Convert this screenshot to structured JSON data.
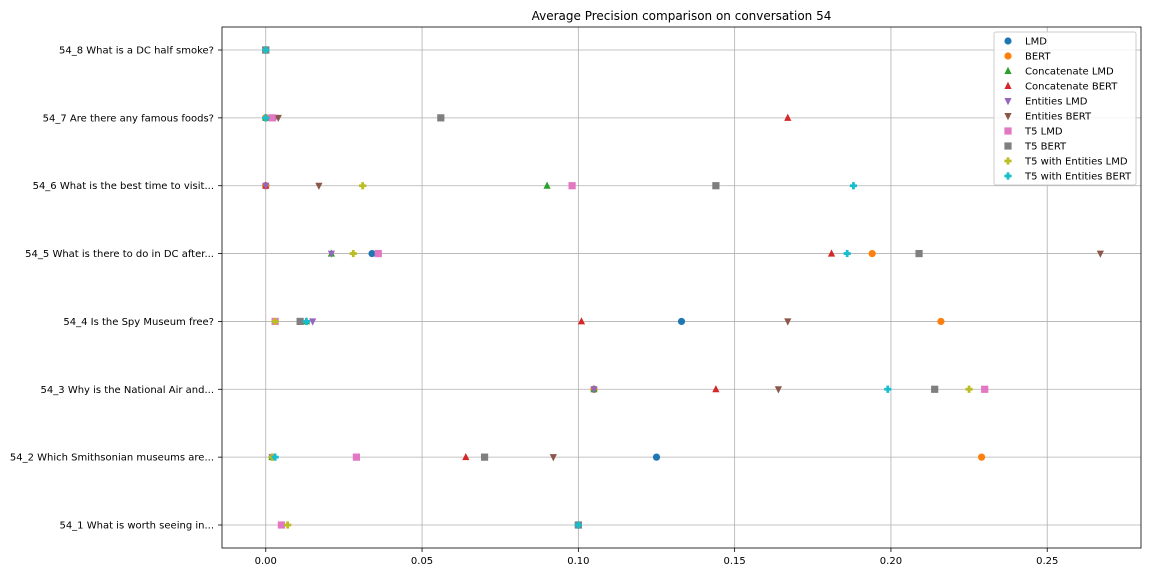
{
  "chart_data": {
    "type": "scatter",
    "title": "Average Precision comparison on conversation 54",
    "xlabel": "",
    "ylabel": "",
    "xlim": [
      -0.014,
      0.28
    ],
    "xticks": [
      0.0,
      0.05,
      0.1,
      0.15,
      0.2,
      0.25
    ],
    "xtick_labels": [
      "0.00",
      "0.05",
      "0.10",
      "0.15",
      "0.20",
      "0.25"
    ],
    "categories": [
      "54_8 What is a DC half smoke?",
      "54_7 Are there any famous foods?",
      "54_6 What is the best time to visit...",
      "54_5 What is there to do in DC after...",
      "54_4 Is the Spy Museum free?",
      "54_3 Why is the National Air and...",
      "54_2 Which Smithsonian museums are...",
      "54_1 What is worth seeing in..."
    ],
    "grid": true,
    "legend_position": "top-right",
    "series": [
      {
        "name": "LMD",
        "color": "#1f77b4",
        "marker": "circle",
        "values": [
          0.0,
          0.0,
          0.0,
          0.034,
          0.133,
          0.105,
          0.125,
          0.1
        ]
      },
      {
        "name": "BERT",
        "color": "#ff7f0e",
        "marker": "circle",
        "values": [
          0.0,
          0.0,
          0.0,
          0.194,
          0.216,
          0.105,
          0.229,
          0.1
        ]
      },
      {
        "name": "Concatenate LMD",
        "color": "#2ca02c",
        "marker": "triangle-up",
        "values": [
          0.0,
          0.0,
          0.09,
          0.021,
          0.013,
          0.105,
          0.002,
          0.1
        ]
      },
      {
        "name": "Concatenate BERT",
        "color": "#d62728",
        "marker": "triangle-up",
        "values": [
          0.0,
          0.167,
          0.0,
          0.181,
          0.101,
          0.144,
          0.064,
          0.1
        ]
      },
      {
        "name": "Entities LMD",
        "color": "#9467bd",
        "marker": "triangle-down",
        "values": [
          0.0,
          0.003,
          0.0,
          0.021,
          0.015,
          0.105,
          0.002,
          0.1
        ]
      },
      {
        "name": "Entities BERT",
        "color": "#8c564b",
        "marker": "triangle-down",
        "values": [
          0.0,
          0.004,
          0.017,
          0.267,
          0.167,
          0.164,
          0.092,
          0.1
        ]
      },
      {
        "name": "T5 LMD",
        "color": "#e377c2",
        "marker": "square",
        "values": [
          0.0,
          0.002,
          0.098,
          0.036,
          0.003,
          0.23,
          0.029,
          0.005
        ]
      },
      {
        "name": "T5 BERT",
        "color": "#7f7f7f",
        "marker": "square",
        "values": [
          0.0,
          0.056,
          0.144,
          0.209,
          0.011,
          0.214,
          0.07,
          0.1
        ]
      },
      {
        "name": "T5 with Entities LMD",
        "color": "#bcbd22",
        "marker": "plus",
        "values": [
          0.0,
          0.0,
          0.031,
          0.028,
          0.003,
          0.225,
          0.002,
          0.007
        ]
      },
      {
        "name": "T5 with Entities BERT",
        "color": "#17becf",
        "marker": "plus",
        "values": [
          0.0,
          0.0,
          0.188,
          0.186,
          0.013,
          0.199,
          0.003,
          0.1
        ]
      }
    ]
  }
}
